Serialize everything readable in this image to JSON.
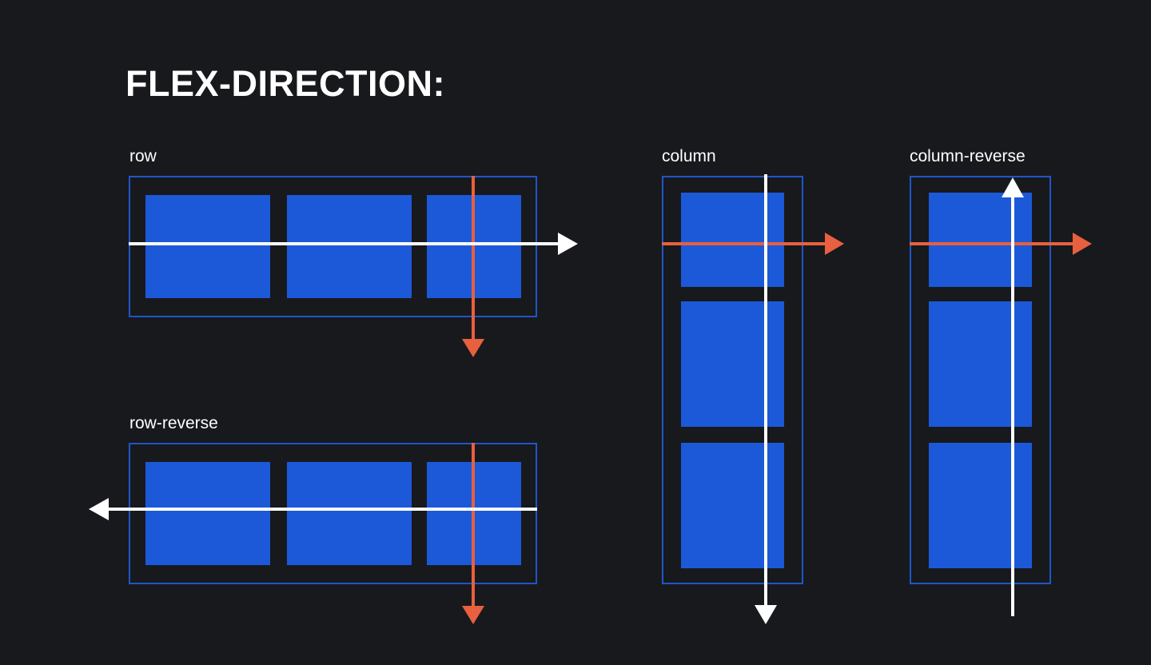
{
  "title": "FLEX-DIRECTION:",
  "examples": {
    "row": {
      "label": "row"
    },
    "row_reverse": {
      "label": "row-reverse"
    },
    "column": {
      "label": "column"
    },
    "column_reverse": {
      "label": "column-reverse"
    }
  },
  "colors": {
    "background": "#18191d",
    "container_border": "#1f56c9",
    "item_fill": "#1b59d9",
    "main_axis": "#ffffff",
    "cross_axis": "#e8603f"
  }
}
